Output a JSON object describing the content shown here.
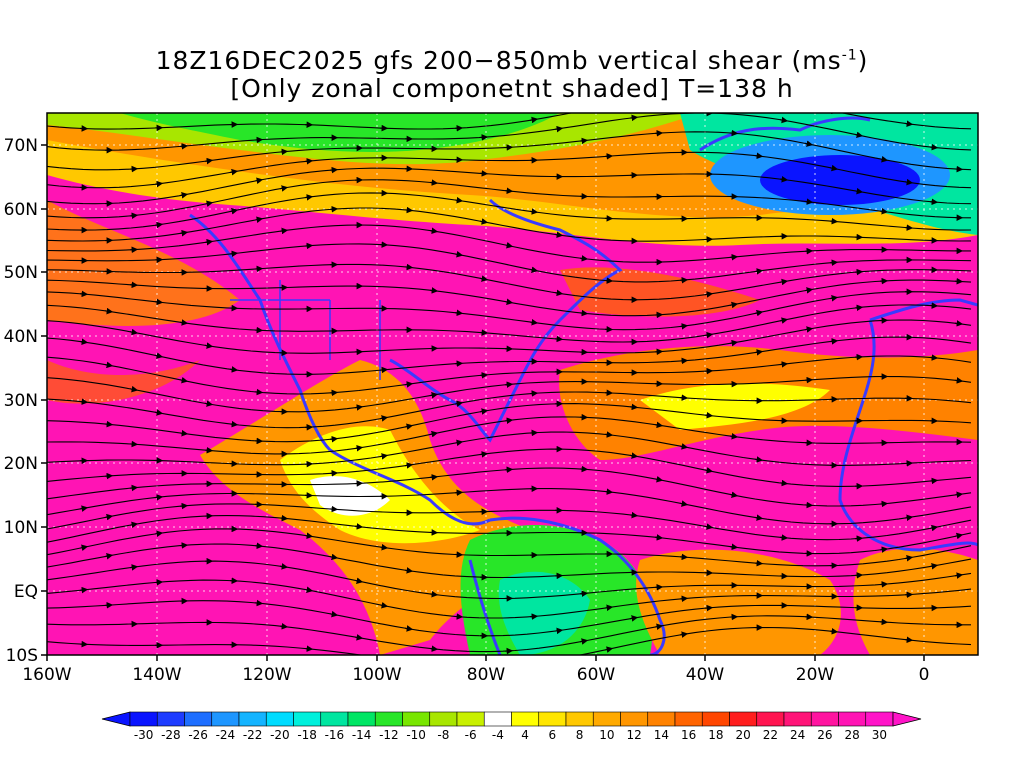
{
  "title": {
    "line1": "18Z16DEC2025 gfs 200−850mb vertical shear (ms",
    "line1_sup": "-1",
    "line1_end": ")",
    "line2": "[Only zonal componetnt shaded] T=138 h"
  },
  "axes": {
    "lat_labels": [
      "70N",
      "60N",
      "50N",
      "40N",
      "30N",
      "20N",
      "10N",
      "EQ",
      "10S"
    ],
    "lon_labels": [
      "160W",
      "140W",
      "120W",
      "100W",
      "80W",
      "60W",
      "40W",
      "20W",
      "0"
    ]
  },
  "colorbar": {
    "labels": [
      "-30",
      "-28",
      "-26",
      "-24",
      "-22",
      "-20",
      "-18",
      "-16",
      "-14",
      "-12",
      "-10",
      "-8",
      "-6",
      "-4",
      "4",
      "6",
      "8",
      "10",
      "12",
      "14",
      "16",
      "18",
      "20",
      "22",
      "24",
      "26",
      "28",
      "30"
    ],
    "colors": [
      "#0a14ff",
      "#1e3cff",
      "#1e6eff",
      "#1e96ff",
      "#14b4ff",
      "#00dcff",
      "#00f0dc",
      "#00e6a0",
      "#00e664",
      "#28e628",
      "#78e600",
      "#a8e600",
      "#c8f000",
      "#ffffff",
      "#ffff00",
      "#ffe600",
      "#ffc800",
      "#ffaa00",
      "#ff9600",
      "#ff8200",
      "#ff6400",
      "#ff4600",
      "#ff1e1e",
      "#ff1450",
      "#ff1478",
      "#ff14a0",
      "#ff14b4",
      "#ff14c8"
    ]
  },
  "map_colors": {
    "coast": "#3a3aff",
    "streamline": "#000000"
  }
}
